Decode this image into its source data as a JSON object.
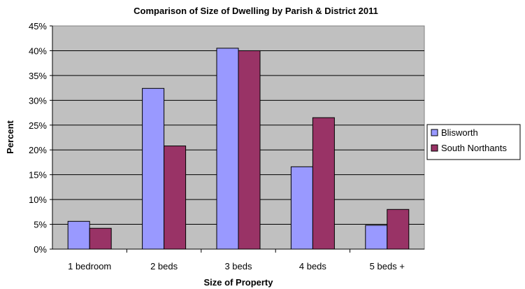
{
  "chart_data": {
    "type": "bar",
    "title": "Comparison of Size of Dwelling by Parish & District 2011",
    "xlabel": "Size of Property",
    "ylabel": "Percent",
    "categories": [
      "1 bedroom",
      "2 beds",
      "3 beds",
      "4 beds",
      "5 beds +"
    ],
    "series": [
      {
        "name": "Blisworth",
        "color": "#9999ff",
        "values": [
          5.6,
          32.4,
          40.5,
          16.6,
          4.8
        ]
      },
      {
        "name": "South Northants",
        "color": "#993366",
        "values": [
          4.2,
          20.8,
          40.0,
          26.5,
          8.0
        ]
      }
    ],
    "ylim": [
      0,
      45
    ],
    "yticks": [
      "0%",
      "5%",
      "10%",
      "15%",
      "20%",
      "25%",
      "30%",
      "35%",
      "40%",
      "45%"
    ],
    "grid": true,
    "plot_background": "#c0c0c0",
    "legend_position": "right"
  }
}
